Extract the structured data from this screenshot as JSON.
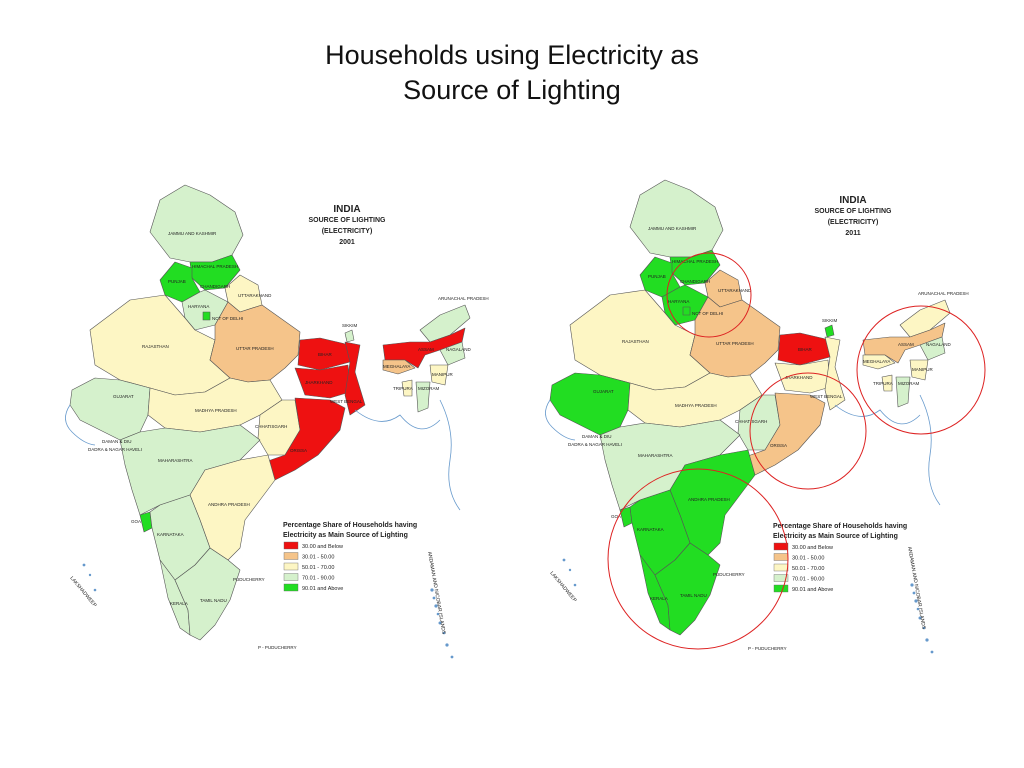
{
  "slide": {
    "title_line1": "Households using Electricity as",
    "title_line2": "Source of Lighting"
  },
  "colors": {
    "c1": "#ee1111",
    "c2": "#f5c48a",
    "c3": "#fdf6c4",
    "c4": "#d5f1cc",
    "c5": "#22dd22",
    "sea": "#6699cc",
    "circle": "#dd2222"
  },
  "legend": {
    "title_line1": "Percentage Share of Households having",
    "title_line2": "Electricity as Main Source of Lighting",
    "classes": [
      "30.00 and Below",
      "30.01 - 50.00",
      "50.01 - 70.00",
      "70.01 - 90.00",
      "90.01 and Above"
    ]
  },
  "maps": [
    {
      "heading_country": "INDIA",
      "heading_line1": "SOURCE OF LIGHTING",
      "heading_line2": "(ELECTRICITY)",
      "heading_year": "2001",
      "labels": {
        "jammu_kashmir": "JAMMU AND KASHMIR",
        "himachal": "HIMACHAL PRADESH",
        "punjab": "PUNJAB",
        "chandigarh": "CHANDIGARH",
        "uttarakhand": "UTTARAKHAND",
        "haryana": "HARYANA",
        "delhi": "NCT OF DELHI",
        "rajasthan": "RAJASTHAN",
        "uttar_pradesh": "UTTAR PRADESH",
        "bihar": "BIHAR",
        "sikkim": "SIKKIM",
        "arunachal": "ARUNACHAL PRADESH",
        "assam": "ASSAM",
        "nagaland": "NAGALAND",
        "meghalaya": "MEGHALAYA",
        "manipur": "MANIPUR",
        "tripura": "TRIPURA",
        "mizoram": "MIZORAM",
        "gujarat": "GUJARAT",
        "madhya_pradesh": "MADHYA PRADESH",
        "jharkhand": "JHARKHAND",
        "west_bengal": "WEST BENGAL",
        "daman_diu": "DAMAN & DIU",
        "dadra": "DADRA & NAGAR HAVELI",
        "chhattisgarh": "CHHATISGARH",
        "maharashtra": "MAHARASHTRA",
        "orissa": "ORISSA",
        "andhra": "ANDHRA PRADESH",
        "goa": "GOA",
        "karnataka": "KARNATAKA",
        "puducherry": "PUDUCHERRY",
        "kerala": "KERALA",
        "tamil_nadu": "TAMIL NADU",
        "lakshadweep": "LAKSHADWEEP",
        "andaman": "ANDAMAN AND NICOBAR ISLANDS",
        "p_puducherry": "P - PUDUCHERRY"
      },
      "classes": {
        "jk": 4,
        "hp": 5,
        "pb": 5,
        "uk": 3,
        "hr": 4,
        "dl": 5,
        "rj": 3,
        "up": 2,
        "br": 1,
        "sk": 4,
        "ar": 4,
        "as": 1,
        "nl": 4,
        "ml": 2,
        "mn": 3,
        "tr": 3,
        "mz": 4,
        "gj": 4,
        "mp": 3,
        "jh": 1,
        "wb": 1,
        "ct": 3,
        "mh": 4,
        "or": 1,
        "ap": 3,
        "ga": 5,
        "ka": 4,
        "kl": 4,
        "tn": 4
      }
    },
    {
      "heading_country": "INDIA",
      "heading_line1": "SOURCE OF LIGHTING",
      "heading_line2": "(ELECTRICITY)",
      "heading_year": "2011",
      "labels": {
        "jammu_kashmir": "JAMMU AND KASHMIR",
        "himachal": "HIMACHAL PRADESH",
        "punjab": "PUNJAB",
        "chandigarh": "CHANDIGARH",
        "uttarakhand": "UTTARAKHAND",
        "haryana": "HARYANA",
        "delhi": "NCT OF DELHI",
        "rajasthan": "RAJASTHAN",
        "uttar_pradesh": "UTTAR PRADESH",
        "bihar": "BIHAR",
        "sikkim": "SIKKIM",
        "arunachal": "ARUNACHAL PRADESH",
        "assam": "ASSAM",
        "nagaland": "NAGALAND",
        "meghalaya": "MEGHALAYA",
        "manipur": "MANIPUR",
        "tripura": "TRIPURA",
        "mizoram": "MIZORAM",
        "gujarat": "GUJARAT",
        "madhya_pradesh": "MADHYA PRADESH",
        "jharkhand": "JHARKHAND",
        "west_bengal": "WEST BENGAL",
        "daman_diu": "DAMAN & DIU",
        "dadra": "DADRA & NAGAR HAVELI",
        "chhattisgarh": "CHHATISGARH",
        "maharashtra": "MAHARASHTRA",
        "orissa": "ORISSA",
        "andhra": "ANDHRA PRADESH",
        "goa": "GOA",
        "karnataka": "KARNATAKA",
        "puducherry": "PUDUCHERRY",
        "kerala": "KERALA",
        "tamil_nadu": "TAMIL NADU",
        "lakshadweep": "LAKSHADWEEP",
        "andaman": "ANDAMAN AND NICOBAR ISLANDS",
        "p_puducherry": "P - PUDUCHERRY"
      },
      "classes": {
        "jk": 4,
        "hp": 5,
        "pb": 5,
        "uk": 2,
        "hr": 5,
        "dl": 5,
        "rj": 3,
        "up": 2,
        "br": 1,
        "sk": 5,
        "ar": 3,
        "as": 2,
        "nl": 4,
        "ml": 3,
        "mn": 3,
        "tr": 3,
        "mz": 4,
        "gj": 5,
        "mp": 3,
        "jh": 3,
        "wb": 3,
        "ct": 4,
        "mh": 4,
        "or": 2,
        "ap": 5,
        "ga": 5,
        "ka": 5,
        "kl": 5,
        "tn": 5
      }
    }
  ]
}
